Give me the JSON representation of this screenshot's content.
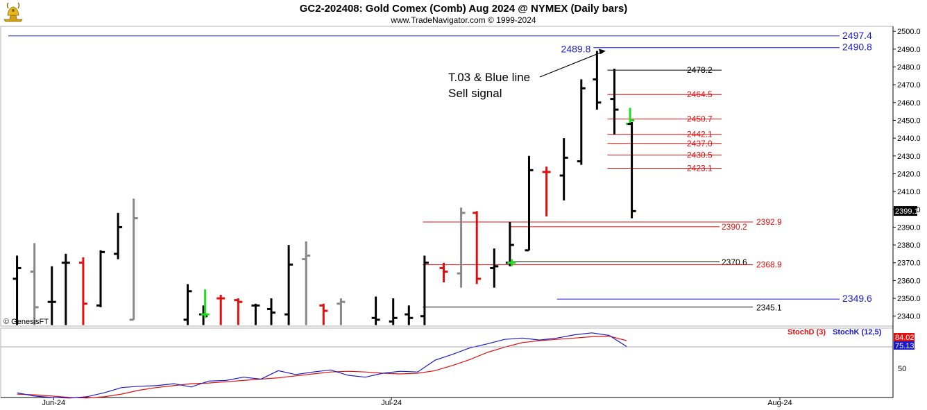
{
  "header": {
    "title": "GC2-202408:  Gold Comex (Comb) Aug 2024 @ NYMEX  (Daily bars)",
    "subtitle": "www.TradeNavigator.com © 1999-2024",
    "watermark": "© GenesisFT",
    "logo_icon": "gold-bull-icon"
  },
  "colors": {
    "up_bar": "#000000",
    "down_bar": "#e01010",
    "neutral_bar": "#888888",
    "signal_bar": "#20dd20",
    "blue_line": "#1a1acc",
    "red_line": "#e01010",
    "black_line": "#000000",
    "stoch_d": "#e01010",
    "stoch_k": "#1a1acc",
    "panel_bg": "#ffffff",
    "frame": "#bbbbbb"
  },
  "chart_data": [
    {
      "type": "ohlc",
      "title": "GC2-202408:  Gold Comex (Comb) Aug 2024 @ NYMEX  (Daily bars)",
      "ylim": [
        2336,
        2502
      ],
      "y_ticks": [
        "2500.0",
        "2490.0",
        "2480.0",
        "2470.0",
        "2460.0",
        "2450.0",
        "2440.0",
        "2430.0",
        "2420.0",
        "2410.0",
        "2400.0",
        "2390.0",
        "2380.0",
        "2370.0",
        "2360.0",
        "2350.0",
        "2340.0"
      ],
      "x_labels": [
        {
          "label": "Jun-24",
          "index": 2.6
        },
        {
          "label": "Jul-24",
          "index": 22.0
        },
        {
          "label": "Aug-24",
          "index": 44.3
        }
      ],
      "last_price": "2399.1",
      "bars": [
        {
          "i": 0.5,
          "o": 2361,
          "h": 2374,
          "l": 2335,
          "c": 2367,
          "col": "up"
        },
        {
          "i": 1.5,
          "o": 2365,
          "h": 2381,
          "l": 2335,
          "c": 2345,
          "col": "neutral"
        },
        {
          "i": 2.5,
          "o": 2348,
          "h": 2368,
          "l": 2335,
          "c": 2348,
          "col": "up"
        },
        {
          "i": 3.3,
          "o": 2370,
          "h": 2375,
          "l": 2335,
          "c": 2370,
          "col": "up"
        },
        {
          "i": 4.3,
          "o": 2370,
          "h": 2373,
          "l": 2335,
          "c": 2347,
          "col": "down"
        },
        {
          "i": 5.3,
          "o": 2346,
          "h": 2377,
          "l": 2345,
          "c": 2376,
          "col": "up"
        },
        {
          "i": 6.3,
          "o": 2375,
          "h": 2398,
          "l": 2372,
          "c": 2390,
          "col": "up"
        },
        {
          "i": 7.2,
          "o": 2338,
          "h": 2406,
          "l": 2338,
          "c": 2395,
          "col": "neutral"
        },
        {
          "i": 10.3,
          "o": 2338,
          "h": 2358,
          "l": 2335,
          "c": 2354,
          "col": "up"
        },
        {
          "i": 11.2,
          "o": 2341,
          "h": 2346,
          "l": 2335,
          "c": 2340,
          "col": "up"
        },
        {
          "i": 11.3,
          "o": 2341,
          "h": 2355,
          "l": 2339,
          "c": 2341,
          "col": "signal"
        },
        {
          "i": 12.2,
          "o": 2350,
          "h": 2352,
          "l": 2335,
          "c": 2350,
          "col": "down"
        },
        {
          "i": 13.2,
          "o": 2349,
          "h": 2350,
          "l": 2335,
          "c": 2348,
          "col": "down"
        },
        {
          "i": 14.2,
          "o": 2346,
          "h": 2347,
          "l": 2335,
          "c": 2346,
          "col": "up"
        },
        {
          "i": 15.1,
          "o": 2344,
          "h": 2350,
          "l": 2335,
          "c": 2342,
          "col": "up"
        },
        {
          "i": 16.1,
          "o": 2341,
          "h": 2380,
          "l": 2335,
          "c": 2369,
          "col": "up"
        },
        {
          "i": 17.1,
          "o": 2372,
          "h": 2382,
          "l": 2335,
          "c": 2374,
          "col": "neutral"
        },
        {
          "i": 18.1,
          "o": 2346,
          "h": 2347,
          "l": 2335,
          "c": 2343,
          "col": "down"
        },
        {
          "i": 19.1,
          "o": 2347,
          "h": 2350,
          "l": 2335,
          "c": 2348,
          "col": "neutral"
        },
        {
          "i": 21.1,
          "o": 2339,
          "h": 2351,
          "l": 2335,
          "c": 2338,
          "col": "up"
        },
        {
          "i": 22.1,
          "o": 2337,
          "h": 2350,
          "l": 2335,
          "c": 2339,
          "col": "up"
        },
        {
          "i": 23.0,
          "o": 2341,
          "h": 2346,
          "l": 2335,
          "c": 2339,
          "col": "up"
        },
        {
          "i": 23.9,
          "o": 2340,
          "h": 2374,
          "l": 2335,
          "c": 2370,
          "col": "up"
        },
        {
          "i": 25.0,
          "o": 2367,
          "h": 2370,
          "l": 2359,
          "c": 2365,
          "col": "down"
        },
        {
          "i": 26.0,
          "o": 2364,
          "h": 2401,
          "l": 2356,
          "c": 2398,
          "col": "neutral"
        },
        {
          "i": 26.9,
          "o": 2398,
          "h": 2399,
          "l": 2358,
          "c": 2361,
          "col": "down"
        },
        {
          "i": 27.9,
          "o": 2367,
          "h": 2378,
          "l": 2356,
          "c": 2368,
          "col": "up"
        },
        {
          "i": 28.8,
          "o": 2370,
          "h": 2393,
          "l": 2368,
          "c": 2380,
          "col": "up"
        },
        {
          "i": 28.9,
          "o": 2370,
          "h": 2372,
          "l": 2368,
          "c": 2370,
          "col": "signal"
        },
        {
          "i": 29.9,
          "o": 2377,
          "h": 2430,
          "l": 2377,
          "c": 2422,
          "col": "up"
        },
        {
          "i": 30.9,
          "o": 2421,
          "h": 2424,
          "l": 2396,
          "c": 2421,
          "col": "down"
        },
        {
          "i": 31.9,
          "o": 2419,
          "h": 2440,
          "l": 2405,
          "c": 2429,
          "col": "up"
        },
        {
          "i": 32.9,
          "o": 2427,
          "h": 2473,
          "l": 2425,
          "c": 2468,
          "col": "up"
        },
        {
          "i": 33.8,
          "o": 2473,
          "h": 2489,
          "l": 2456,
          "c": 2460,
          "col": "up"
        },
        {
          "i": 34.8,
          "o": 2462,
          "h": 2479,
          "l": 2442,
          "c": 2456,
          "col": "up"
        },
        {
          "i": 35.7,
          "o": 2448,
          "h": 2457,
          "l": 2448,
          "c": 2450,
          "col": "signal"
        },
        {
          "i": 35.8,
          "o": 2448,
          "h": 2449,
          "l": 2395,
          "c": 2399,
          "col": "up"
        }
      ],
      "levels": [
        {
          "value": 2497.4,
          "label": "2497.4",
          "color": "blue",
          "x_start": 0.0
        },
        {
          "value": 2490.8,
          "label": "2490.8",
          "color": "blue",
          "x_start": 33.6
        },
        {
          "value": 2489.8,
          "label": "2489.8",
          "color": "blue",
          "x_start": 33.6,
          "label_left": true
        },
        {
          "value": 2478.2,
          "label": "2478.2",
          "color": "black",
          "x_start": 34.4
        },
        {
          "value": 2464.5,
          "label": "2464.5",
          "color": "red",
          "x_start": 34.4
        },
        {
          "value": 2450.7,
          "label": "2450.7",
          "color": "red",
          "x_start": 34.4
        },
        {
          "value": 2442.1,
          "label": "2442.1",
          "color": "red",
          "x_start": 34.4
        },
        {
          "value": 2437.0,
          "label": "2437.0",
          "color": "red",
          "x_start": 34.4
        },
        {
          "value": 2430.5,
          "label": "2430.5",
          "color": "red",
          "x_start": 34.4
        },
        {
          "value": 2423.1,
          "label": "2423.1",
          "color": "red",
          "x_start": 34.4
        },
        {
          "value": 2392.9,
          "label": "2392.9",
          "color": "red",
          "x_start": 23.8
        },
        {
          "value": 2390.2,
          "label": "2390.2",
          "color": "red",
          "x_start": 28.8
        },
        {
          "value": 2370.6,
          "label": "2370.6",
          "color": "black",
          "x_start": 28.8
        },
        {
          "value": 2368.9,
          "label": "2368.9",
          "color": "red",
          "x_start": 23.8
        },
        {
          "value": 2349.6,
          "label": "2349.6",
          "color": "blue",
          "x_start": 31.5
        },
        {
          "value": 2345.1,
          "label": "2345.1",
          "color": "black",
          "x_start": 23.8
        }
      ],
      "annotation": {
        "lines": [
          "T.03 & Blue line",
          "Sell signal"
        ],
        "arrow_to": {
          "i": 34.3,
          "y": 2489
        }
      }
    },
    {
      "type": "line",
      "title": "Stochastic",
      "ylim": [
        0,
        100
      ],
      "y_ticks": [
        "50"
      ],
      "legend": [
        "StochD (3)",
        "StochK (12,5)"
      ],
      "last_values": {
        "stoch_d": "84.02",
        "stoch_k": "75.13"
      },
      "series": [
        {
          "name": "StochD (3)",
          "color": "red",
          "x": [
            0.5,
            1.5,
            2.5,
            3.5,
            4.5,
            5.5,
            6.5,
            7.5,
            8.5,
            9.5,
            10.5,
            11.5,
            12.5,
            13.5,
            14.5,
            15.5,
            16.5,
            17.5,
            18.5,
            19.5,
            20.5,
            21.5,
            22.5,
            23.5,
            24.5,
            25.5,
            26.5,
            27.5,
            28.5,
            29.5,
            30.5,
            31.5,
            32.5,
            33.5,
            34.5,
            35.5
          ],
          "values": [
            2,
            1,
            -1,
            -3,
            -4,
            -2,
            2,
            8,
            12,
            15,
            18,
            19,
            21,
            23,
            25,
            27,
            30,
            33,
            36,
            37,
            36,
            34,
            33,
            34,
            38,
            46,
            55,
            66,
            74,
            81,
            84,
            86,
            88,
            90,
            91,
            84
          ]
        },
        {
          "name": "StochK (12,5)",
          "color": "blue",
          "x": [
            0.5,
            1.5,
            2.5,
            3.5,
            4.5,
            5.5,
            6.5,
            7.5,
            8.5,
            9.5,
            10.5,
            11.5,
            12.5,
            13.5,
            14.5,
            15.5,
            16.5,
            17.5,
            18.5,
            19.5,
            20.5,
            21.5,
            22.5,
            23.5,
            24.5,
            25.5,
            26.5,
            27.5,
            28.5,
            29.5,
            30.5,
            31.5,
            32.5,
            33.5,
            34.5,
            35.5
          ],
          "values": [
            4,
            -1,
            -3,
            -4,
            -2,
            4,
            12,
            14,
            15,
            18,
            13,
            22,
            23,
            28,
            25,
            38,
            32,
            36,
            39,
            31,
            28,
            34,
            37,
            36,
            54,
            63,
            73,
            79,
            86,
            88,
            85,
            88,
            93,
            96,
            92,
            75
          ]
        }
      ]
    }
  ]
}
